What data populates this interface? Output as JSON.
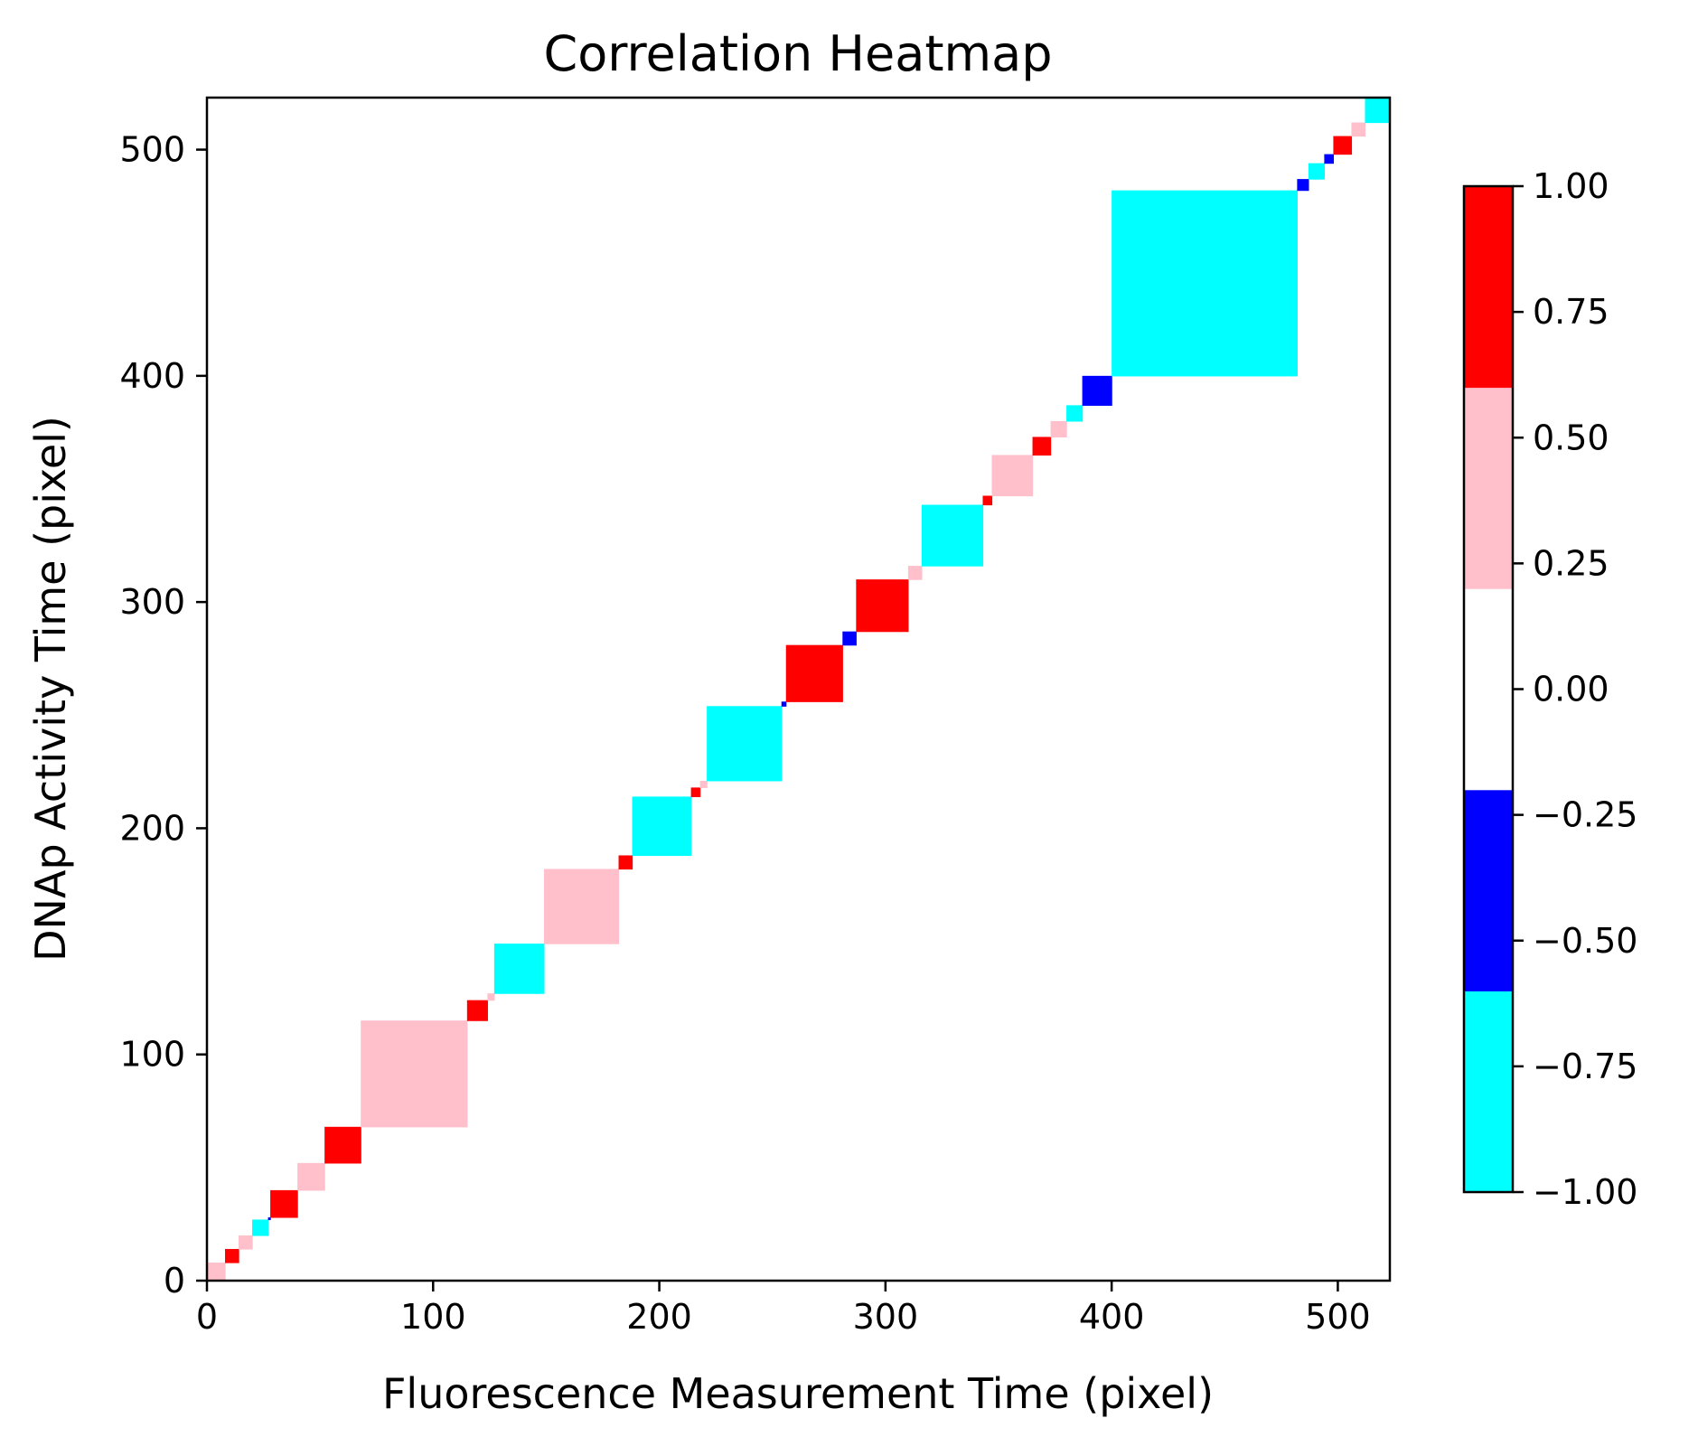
{
  "chart_data": {
    "type": "heatmap",
    "title": "Correlation Heatmap",
    "xlabel": "Fluorescence Measurement Time (pixel)",
    "ylabel": "DNAp Activity Time (pixel)",
    "xlim": [
      0,
      523
    ],
    "ylim": [
      0,
      523
    ],
    "x_ticks": [
      0,
      100,
      200,
      300,
      400,
      500
    ],
    "y_ticks": [
      0,
      100,
      200,
      300,
      400,
      500
    ],
    "x_tick_labels": [
      "0",
      "100",
      "200",
      "300",
      "400",
      "500"
    ],
    "y_tick_labels": [
      "0",
      "100",
      "200",
      "300",
      "400",
      "500"
    ],
    "grid": false,
    "colorbar": {
      "vmin": -1.0,
      "vmax": 1.0,
      "ticks": [
        1.0,
        0.75,
        0.5,
        0.25,
        0.0,
        -0.25,
        -0.5,
        -0.75,
        -1.0
      ],
      "tick_labels": [
        "1.00",
        "0.75",
        "0.50",
        "0.25",
        "0.00",
        "−0.25",
        "−0.50",
        "−0.75",
        "−1.00"
      ],
      "bins": [
        {
          "from": -1.0,
          "to": -0.6,
          "color": "#00ffff"
        },
        {
          "from": -0.6,
          "to": -0.2,
          "color": "#0000ff"
        },
        {
          "from": -0.2,
          "to": 0.2,
          "color": "#ffffff"
        },
        {
          "from": 0.2,
          "to": 0.6,
          "color": "#ffc0cb"
        },
        {
          "from": 0.6,
          "to": 1.0,
          "color": "#ff0000"
        }
      ]
    },
    "background_value": 0.0,
    "blocks": [
      {
        "start": 0,
        "end": 8,
        "value": 0.4
      },
      {
        "start": 8,
        "end": 14,
        "value": 0.8
      },
      {
        "start": 14,
        "end": 20,
        "value": 0.4
      },
      {
        "start": 20,
        "end": 27,
        "value": -0.8
      },
      {
        "start": 27,
        "end": 28,
        "value": -0.4
      },
      {
        "start": 28,
        "end": 40,
        "value": 0.8
      },
      {
        "start": 40,
        "end": 52,
        "value": 0.4
      },
      {
        "start": 52,
        "end": 68,
        "value": 0.8
      },
      {
        "start": 68,
        "end": 115,
        "value": 0.4
      },
      {
        "start": 115,
        "end": 124,
        "value": 0.8
      },
      {
        "start": 124,
        "end": 127,
        "value": 0.4
      },
      {
        "start": 127,
        "end": 149,
        "value": -0.8
      },
      {
        "start": 149,
        "end": 182,
        "value": 0.4
      },
      {
        "start": 182,
        "end": 188,
        "value": 0.8
      },
      {
        "start": 188,
        "end": 214,
        "value": -0.8
      },
      {
        "start": 214,
        "end": 218,
        "value": 0.8
      },
      {
        "start": 218,
        "end": 221,
        "value": 0.4
      },
      {
        "start": 221,
        "end": 254,
        "value": -0.8
      },
      {
        "start": 254,
        "end": 256,
        "value": -0.4
      },
      {
        "start": 256,
        "end": 281,
        "value": 0.8
      },
      {
        "start": 281,
        "end": 287,
        "value": -0.4
      },
      {
        "start": 287,
        "end": 310,
        "value": 0.8
      },
      {
        "start": 310,
        "end": 316,
        "value": 0.4
      },
      {
        "start": 316,
        "end": 343,
        "value": -0.8
      },
      {
        "start": 343,
        "end": 347,
        "value": 0.8
      },
      {
        "start": 347,
        "end": 365,
        "value": 0.4
      },
      {
        "start": 365,
        "end": 373,
        "value": 0.8
      },
      {
        "start": 373,
        "end": 380,
        "value": 0.4
      },
      {
        "start": 380,
        "end": 387,
        "value": -0.8
      },
      {
        "start": 387,
        "end": 400,
        "value": -0.4
      },
      {
        "start": 400,
        "end": 482,
        "value": -0.8
      },
      {
        "start": 482,
        "end": 487,
        "value": -0.4
      },
      {
        "start": 487,
        "end": 494,
        "value": -0.8
      },
      {
        "start": 494,
        "end": 498,
        "value": -0.4
      },
      {
        "start": 498,
        "end": 506,
        "value": 0.8
      },
      {
        "start": 506,
        "end": 512,
        "value": 0.4
      },
      {
        "start": 512,
        "end": 523,
        "value": -0.8
      }
    ]
  }
}
